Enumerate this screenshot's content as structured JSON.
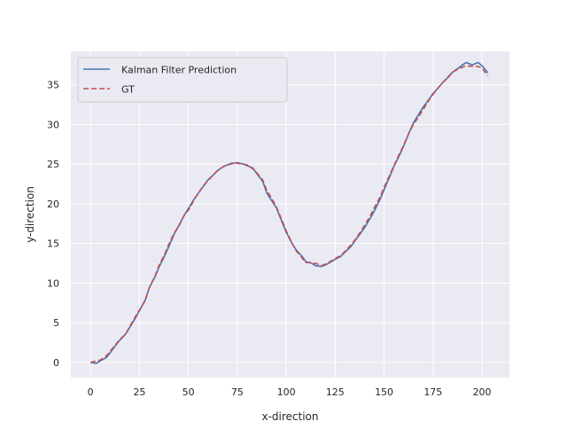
{
  "chart_data": {
    "type": "line",
    "title": "",
    "xlabel": "x-direction",
    "ylabel": "y-direction",
    "xlim": [
      -10,
      214
    ],
    "ylim": [
      -1.9,
      39.2
    ],
    "xticks": [
      0,
      25,
      50,
      75,
      100,
      125,
      150,
      175,
      200
    ],
    "yticks": [
      0,
      5,
      10,
      15,
      20,
      25,
      30,
      35
    ],
    "grid": true,
    "legend_position": "top-left",
    "colors": {
      "background": "#eaeaf2",
      "grid": "#ffffff",
      "prediction": "#4c72b0",
      "gt": "#c44e52"
    },
    "series": [
      {
        "name": "Kalman Filter Prediction",
        "style": "solid",
        "x": [
          0,
          3,
          5,
          8,
          10,
          13,
          15,
          18,
          20,
          23,
          25,
          28,
          30,
          33,
          35,
          38,
          40,
          43,
          45,
          48,
          50,
          53,
          55,
          58,
          60,
          63,
          65,
          68,
          70,
          73,
          75,
          78,
          80,
          83,
          85,
          88,
          90,
          92,
          95,
          98,
          100,
          103,
          105,
          108,
          110,
          113,
          115,
          118,
          120,
          123,
          125,
          128,
          130,
          133,
          135,
          138,
          140,
          143,
          145,
          148,
          150,
          153,
          155,
          158,
          160,
          163,
          165,
          168,
          170,
          173,
          175,
          178,
          180,
          183,
          185,
          188,
          190,
          192,
          195,
          198,
          200,
          203
        ],
        "y": [
          0.0,
          -0.1,
          0.2,
          0.6,
          1.2,
          2.2,
          2.8,
          3.6,
          4.4,
          5.6,
          6.5,
          7.9,
          9.4,
          10.8,
          12.0,
          13.5,
          14.6,
          16.3,
          17.2,
          18.6,
          19.4,
          20.6,
          21.3,
          22.3,
          23.0,
          23.7,
          24.2,
          24.7,
          24.9,
          25.1,
          25.2,
          25.0,
          24.8,
          24.5,
          23.8,
          22.8,
          21.4,
          20.6,
          19.5,
          17.6,
          16.4,
          15.0,
          14.2,
          13.4,
          12.7,
          12.5,
          12.2,
          12.1,
          12.3,
          12.7,
          13.0,
          13.4,
          13.9,
          14.6,
          15.3,
          16.3,
          17.0,
          18.2,
          19.1,
          20.6,
          21.8,
          23.5,
          24.7,
          26.2,
          27.3,
          29.1,
          30.2,
          31.4,
          32.2,
          33.2,
          33.9,
          34.7,
          35.3,
          36.0,
          36.6,
          37.1,
          37.5,
          37.8,
          37.5,
          37.8,
          37.4,
          36.5
        ],
        "color": "#4c72b0"
      },
      {
        "name": "GT",
        "style": "dashed",
        "x": [
          0,
          3,
          5,
          8,
          10,
          13,
          15,
          18,
          20,
          23,
          25,
          28,
          30,
          33,
          35,
          38,
          40,
          43,
          45,
          48,
          50,
          53,
          55,
          58,
          60,
          63,
          65,
          68,
          70,
          73,
          75,
          78,
          80,
          83,
          85,
          88,
          90,
          92,
          95,
          98,
          100,
          103,
          105,
          108,
          110,
          113,
          115,
          118,
          120,
          123,
          125,
          128,
          130,
          133,
          135,
          138,
          140,
          143,
          145,
          148,
          150,
          153,
          155,
          158,
          160,
          163,
          165,
          168,
          170,
          173,
          175,
          178,
          180,
          183,
          185,
          188,
          190,
          192,
          195,
          198,
          200,
          203
        ],
        "y": [
          0.0,
          0.2,
          0.3,
          0.8,
          1.4,
          2.3,
          2.9,
          3.6,
          4.5,
          5.8,
          6.6,
          7.8,
          9.4,
          10.9,
          12.2,
          13.7,
          14.9,
          16.4,
          17.1,
          18.6,
          19.2,
          20.5,
          21.3,
          22.4,
          22.9,
          23.7,
          24.2,
          24.7,
          24.9,
          25.2,
          25.1,
          25.0,
          24.9,
          24.4,
          23.9,
          23.0,
          21.7,
          20.9,
          19.6,
          17.8,
          16.6,
          15.0,
          14.1,
          13.2,
          12.6,
          12.6,
          12.5,
          12.2,
          12.4,
          12.8,
          13.1,
          13.5,
          14.0,
          14.8,
          15.4,
          16.5,
          17.3,
          18.5,
          19.5,
          20.9,
          22.1,
          23.7,
          24.8,
          26.4,
          27.4,
          29.1,
          30.0,
          31.1,
          31.9,
          33.1,
          33.8,
          34.7,
          35.3,
          36.1,
          36.6,
          37.0,
          37.2,
          37.4,
          37.3,
          37.3,
          37.1,
          36.1
        ],
        "color": "#c44e52"
      }
    ]
  }
}
